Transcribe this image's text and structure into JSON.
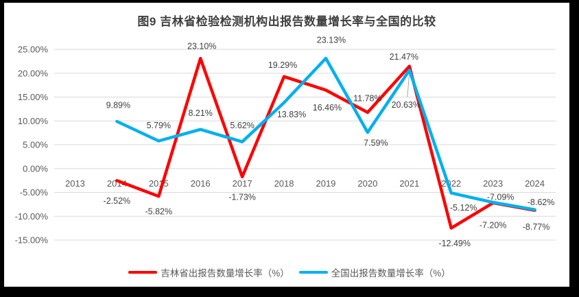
{
  "frame": {
    "background": "#000000",
    "chart_background": "#ffffff"
  },
  "chart": {
    "title": "图9 吉林省检验检测机构出报告数量增长率与全国的比较"
  },
  "legend": {
    "items": [
      {
        "label": "吉林省出报告数量增长率（%）",
        "color": "#ff0000"
      },
      {
        "label": "全国出报告数量增长率（%）",
        "color": "#00b0f0"
      }
    ]
  },
  "chart_data": {
    "type": "line",
    "title": "图9 吉林省检验检测机构出报告数量增长率与全国的比较",
    "categories": [
      "2013",
      "2014",
      "2015",
      "2016",
      "2017",
      "2018",
      "2019",
      "2020",
      "2021",
      "2022",
      "2023",
      "2024"
    ],
    "series": [
      {
        "name": "吉林省出报告数量增长率（%）",
        "color": "#ff0000",
        "values": [
          null,
          -2.52,
          -5.82,
          23.1,
          -1.73,
          19.29,
          16.46,
          11.78,
          21.47,
          -12.49,
          -7.2,
          -8.77
        ],
        "labels": [
          null,
          "-2.52%",
          "-5.82%",
          "23.10%",
          "-1.73%",
          "19.29%",
          "16.46%",
          "11.78%",
          "21.47%",
          "-12.49%",
          "-7.20%",
          "-8.77%"
        ],
        "label_offsets": [
          null,
          [
            0,
            29
          ],
          [
            0,
            22
          ],
          [
            2,
            -18
          ],
          [
            0,
            29
          ],
          [
            -2,
            -17
          ],
          [
            2,
            25
          ],
          [
            0,
            -21
          ],
          [
            -8,
            -14
          ],
          [
            5,
            22
          ],
          [
            0,
            32
          ],
          [
            2,
            24
          ]
        ]
      },
      {
        "name": "全国出报告数量增长率（%）",
        "color": "#00b0f0",
        "values": [
          null,
          9.89,
          5.79,
          8.21,
          5.62,
          13.83,
          23.13,
          7.59,
          20.63,
          -5.12,
          -7.09,
          -8.62
        ],
        "labels": [
          null,
          "9.89%",
          "5.79%",
          "8.21%",
          "5.62%",
          "13.83%",
          "23.13%",
          "7.59%",
          "20.63%",
          "-5.12%",
          "-7.09%",
          "-8.62%"
        ],
        "label_offsets": [
          null,
          [
            2,
            -24
          ],
          [
            0,
            -23
          ],
          [
            0,
            -24
          ],
          [
            0,
            -24
          ],
          [
            11,
            17
          ],
          [
            8,
            -27
          ],
          [
            12,
            15
          ],
          [
            -5,
            50
          ],
          [
            18,
            21
          ],
          [
            11,
            -8
          ],
          [
            9,
            -11
          ]
        ]
      }
    ],
    "ylim": [
      -15,
      25
    ],
    "yticks": [
      {
        "value": 25,
        "label": "25.00%"
      },
      {
        "value": 20,
        "label": "20.00%"
      },
      {
        "value": 15,
        "label": "15.00%"
      },
      {
        "value": 10,
        "label": "10.00%"
      },
      {
        "value": 5,
        "label": "5.00%"
      },
      {
        "value": 0,
        "label": "0.00%"
      },
      {
        "value": -5,
        "label": "-5.00%"
      },
      {
        "value": -10,
        "label": "-10.00%"
      },
      {
        "value": -15,
        "label": "-15.00%"
      }
    ],
    "grid": true,
    "gridline_color": "#d9d9d9",
    "axis_text_color": "#595959",
    "data_label_color": "#404040",
    "leader_line": {
      "series": 1,
      "index": 8,
      "color": "#a6a6a6"
    },
    "legend_position": "bottom"
  }
}
